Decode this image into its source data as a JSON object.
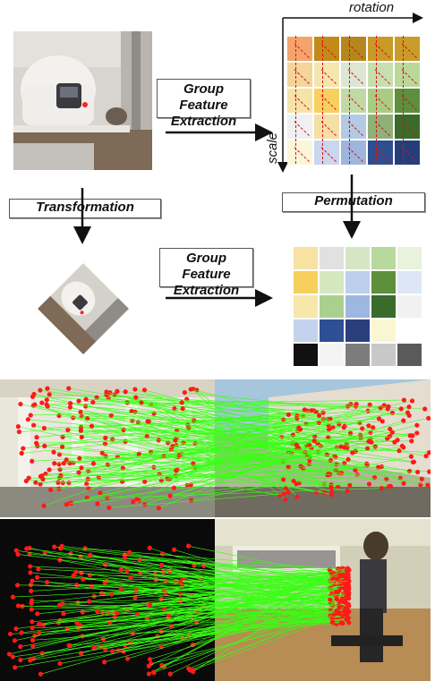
{
  "labels": {
    "group_feature_line1": "Group Feature",
    "group_feature_line2": "Extraction",
    "group_feature2_line1": "Group Feature",
    "group_feature2_line2": "Extraction",
    "transformation": "Transformation",
    "permutation": "Permutation",
    "rotation": "rotation",
    "scale": "scale"
  },
  "grid_top": {
    "rows": [
      [
        "#f4a46a",
        "#c28a1a",
        "#b6861e",
        "#c89a26",
        "#c79c2a"
      ],
      [
        "#f3d49a",
        "#f5e6b0",
        "#dde6d2",
        "#c6dfb0",
        "#b9d89a"
      ],
      [
        "#f5e3a8",
        "#f7d060",
        "#c2d9a6",
        "#a8cc84",
        "#5d8f3c"
      ],
      [
        "#eef0f2",
        "#f5dfa6",
        "#b4c9e4",
        "#8fb079",
        "#3a6b2a"
      ],
      [
        "#fbf6d8",
        "#c9d6ee",
        "#9fb5de",
        "#2f4e8f",
        "#253e7a"
      ]
    ]
  },
  "grid_bottom": {
    "rows": [
      [
        "#f7e2a2",
        "#e1e1e1",
        "#d6e6c4",
        "#b8d99c",
        "#e8f2dc"
      ],
      [
        "#f6cf5c",
        "#d4e8c0",
        "#bcd0ec",
        "#5d8f3c",
        "#dde6f4"
      ],
      [
        "#f6e8aa",
        "#a9d08e",
        "#9db8e0",
        "#3a6b2a",
        "#f1f1f1"
      ],
      [
        "#c3d3ee",
        "#2e4f93",
        "#2a3f7c",
        "#fbf6d2",
        "#ffffff"
      ],
      [
        "#111111",
        "#f4f4f4",
        "#7c7c7c",
        "#c8c8c8",
        "#5a5a5a"
      ]
    ]
  },
  "colors": {
    "match_line": "#39ff14",
    "keypoint": "#ff1a1a",
    "arrow": "#e01010"
  }
}
